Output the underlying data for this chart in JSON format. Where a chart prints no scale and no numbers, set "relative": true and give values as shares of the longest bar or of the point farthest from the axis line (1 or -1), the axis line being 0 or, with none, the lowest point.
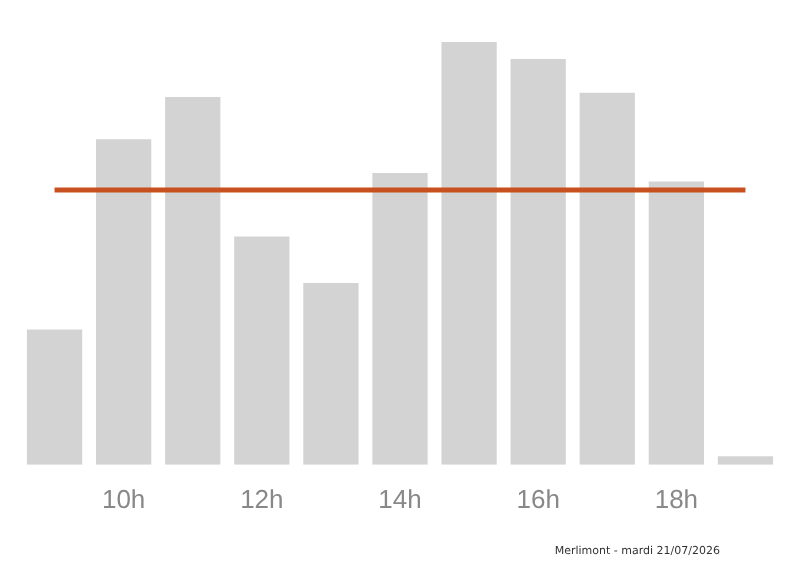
{
  "chart_data": {
    "type": "bar",
    "relative": true,
    "categories": [
      null,
      "10h",
      null,
      "12h",
      null,
      "14h",
      null,
      "16h",
      null,
      "18h",
      null
    ],
    "values": [
      0.32,
      0.77,
      0.87,
      0.54,
      0.43,
      0.69,
      1,
      0.96,
      0.88,
      0.67,
      0.02
    ],
    "color": "#d3d3d3",
    "ref_lines": [
      {
        "axis": "y",
        "value": 0.65,
        "color": "#c8501e"
      }
    ],
    "annotations": [
      "Merlimont - mardi 21/07/2026"
    ],
    "grid": false,
    "legend": false
  }
}
